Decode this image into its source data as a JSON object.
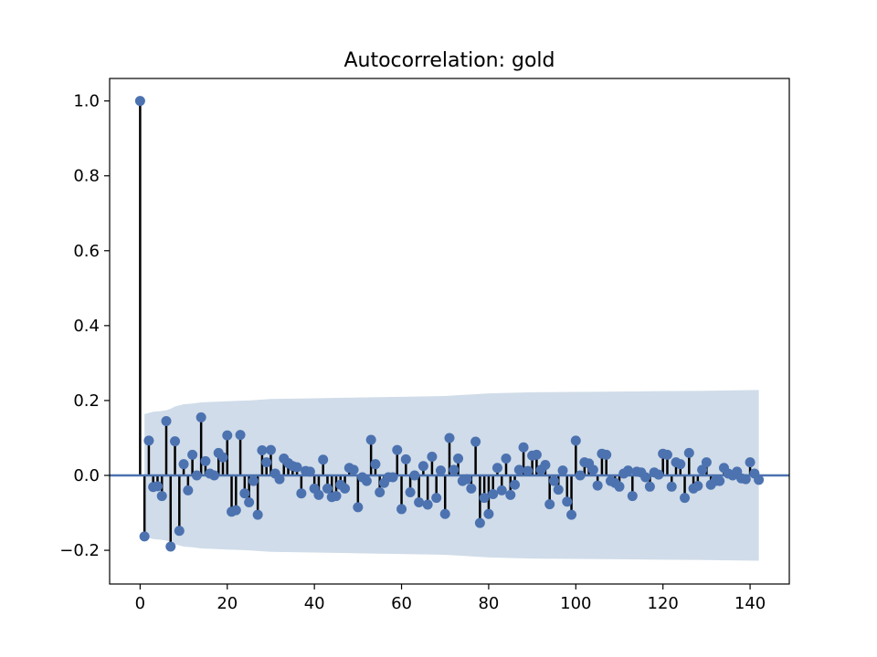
{
  "chart_data": {
    "type": "stem",
    "title": "Autocorrelation: gold",
    "xlabel": "",
    "ylabel": "",
    "xlim": [
      -7,
      149
    ],
    "ylim": [
      -0.29,
      1.06
    ],
    "xticks": [
      0,
      20,
      40,
      60,
      80,
      100,
      120,
      140
    ],
    "yticks": [
      1.0,
      0.8,
      0.6,
      0.4,
      0.2,
      0.0,
      -0.2
    ],
    "ytick_labels": [
      "1.0",
      "0.8",
      "0.6",
      "0.4",
      "0.2",
      "0.0",
      "−0.2"
    ],
    "x": [
      0,
      1,
      2,
      3,
      4,
      5,
      6,
      7,
      8,
      9,
      10,
      11,
      12,
      13,
      14,
      15,
      16,
      17,
      18,
      19,
      20,
      21,
      22,
      23,
      24,
      25,
      26,
      27,
      28,
      29,
      30,
      31,
      32,
      33,
      34,
      35,
      36,
      37,
      38,
      39,
      40,
      41,
      42,
      43,
      44,
      45,
      46,
      47,
      48,
      49,
      50,
      51,
      52,
      53,
      54,
      55,
      56,
      57,
      58,
      59,
      60,
      61,
      62,
      63,
      64,
      65,
      66,
      67,
      68,
      69,
      70,
      71,
      72,
      73,
      74,
      75,
      76,
      77,
      78,
      79,
      80,
      81,
      82,
      83,
      84,
      85,
      86,
      87,
      88,
      89,
      90,
      91,
      92,
      93,
      94,
      95,
      96,
      97,
      98,
      99,
      100,
      101,
      102,
      103,
      104,
      105,
      106,
      107,
      108,
      109,
      110,
      111,
      112,
      113,
      114,
      115,
      116,
      117,
      118,
      119,
      120,
      121,
      122,
      123,
      124,
      125,
      126,
      127,
      128,
      129,
      130,
      131,
      132,
      133,
      134,
      135,
      136,
      137,
      138,
      139,
      140,
      141,
      142
    ],
    "values": [
      1.0,
      -0.163,
      0.093,
      -0.031,
      -0.029,
      -0.055,
      0.145,
      -0.19,
      0.091,
      -0.148,
      0.03,
      -0.04,
      0.055,
      0.0,
      0.155,
      0.038,
      0.005,
      0.0,
      0.06,
      0.048,
      0.107,
      -0.097,
      -0.093,
      0.108,
      -0.048,
      -0.072,
      -0.015,
      -0.105,
      0.067,
      0.035,
      0.068,
      0.005,
      -0.01,
      0.045,
      0.033,
      0.025,
      0.022,
      -0.048,
      0.012,
      0.01,
      -0.035,
      -0.052,
      0.042,
      -0.035,
      -0.058,
      -0.055,
      -0.025,
      -0.035,
      0.02,
      0.015,
      -0.085,
      -0.005,
      -0.015,
      0.095,
      0.03,
      -0.045,
      -0.02,
      -0.005,
      -0.005,
      0.068,
      -0.09,
      0.043,
      -0.045,
      0.0,
      -0.072,
      0.025,
      -0.078,
      0.05,
      -0.06,
      0.013,
      -0.103,
      0.1,
      0.015,
      0.045,
      -0.015,
      -0.01,
      -0.035,
      0.09,
      -0.127,
      -0.06,
      -0.103,
      -0.05,
      0.02,
      -0.04,
      0.045,
      -0.052,
      -0.025,
      0.015,
      0.075,
      0.012,
      0.053,
      0.055,
      0.015,
      0.028,
      -0.077,
      -0.015,
      -0.038,
      0.013,
      -0.07,
      -0.105,
      0.093,
      0.0,
      0.035,
      0.032,
      0.015,
      -0.027,
      0.058,
      0.055,
      -0.015,
      -0.02,
      -0.03,
      0.005,
      0.013,
      -0.055,
      0.01,
      0.008,
      -0.005,
      -0.03,
      0.008,
      0.002,
      0.058,
      0.055,
      -0.03,
      0.035,
      0.03,
      -0.06,
      0.06,
      -0.035,
      -0.028,
      0.015,
      0.035,
      -0.025,
      -0.015,
      -0.015,
      0.02,
      0.005,
      0.0,
      0.01,
      -0.008,
      -0.01,
      0.035,
      0.005,
      -0.012
    ],
    "confidence_band": {
      "x": [
        1,
        2,
        3,
        4,
        5,
        6,
        7,
        8,
        9,
        10,
        11,
        12,
        14,
        16,
        20,
        25,
        30,
        40,
        50,
        60,
        70,
        80,
        90,
        100,
        110,
        120,
        130,
        142
      ],
      "upper": [
        0.164,
        0.167,
        0.17,
        0.171,
        0.172,
        0.174,
        0.178,
        0.184,
        0.187,
        0.19,
        0.191,
        0.192,
        0.195,
        0.196,
        0.198,
        0.2,
        0.204,
        0.206,
        0.208,
        0.21,
        0.212,
        0.219,
        0.222,
        0.223,
        0.224,
        0.225,
        0.226,
        0.228
      ]
    },
    "grid": false,
    "legend": "none",
    "colors": {
      "marker": "#4c72b0",
      "stem": "#000000",
      "band": "#d0dce9",
      "zero_line": "#4c72b0"
    }
  }
}
